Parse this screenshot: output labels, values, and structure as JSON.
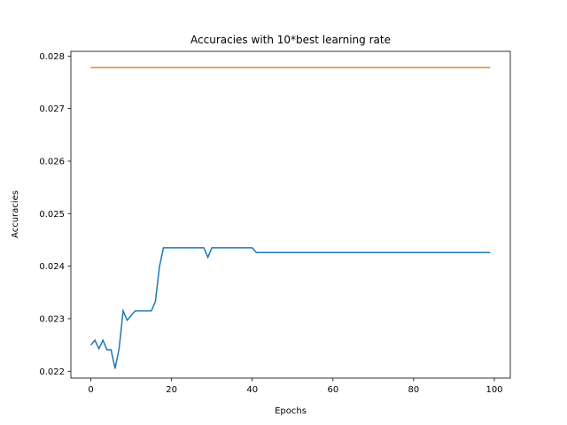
{
  "chart_data": {
    "type": "line",
    "title": "Accuracies with 10*best learning rate",
    "xlabel": "Epochs",
    "ylabel": "Accuracies",
    "xlim": [
      -4.95,
      103.95
    ],
    "ylim": [
      0.02187,
      0.02809
    ],
    "xticks": [
      0,
      20,
      40,
      60,
      80,
      100
    ],
    "yticks": [
      0.022,
      0.023,
      0.024,
      0.025,
      0.026,
      0.027,
      0.028
    ],
    "grid": false,
    "legend": "none",
    "series": [
      {
        "color": "#1f77b4",
        "points": [
          [
            0,
            0.0225
          ],
          [
            1,
            0.02259
          ],
          [
            2,
            0.02243
          ],
          [
            3,
            0.02259
          ],
          [
            4,
            0.02241
          ],
          [
            5,
            0.02241
          ],
          [
            6,
            0.02205
          ],
          [
            7,
            0.02243
          ],
          [
            8,
            0.02315
          ],
          [
            9,
            0.02297
          ],
          [
            10,
            0.02306
          ],
          [
            11,
            0.02315
          ],
          [
            12,
            0.02315
          ],
          [
            13,
            0.02315
          ],
          [
            14,
            0.02315
          ],
          [
            15,
            0.02315
          ],
          [
            16,
            0.02333
          ],
          [
            17,
            0.02399
          ],
          [
            18,
            0.02435
          ],
          [
            19,
            0.02435
          ],
          [
            20,
            0.02435
          ],
          [
            21,
            0.02435
          ],
          [
            22,
            0.02435
          ],
          [
            23,
            0.02435
          ],
          [
            24,
            0.02435
          ],
          [
            25,
            0.02435
          ],
          [
            26,
            0.02435
          ],
          [
            27,
            0.02435
          ],
          [
            28,
            0.02435
          ],
          [
            29,
            0.02417
          ],
          [
            30,
            0.02435
          ],
          [
            31,
            0.02435
          ],
          [
            32,
            0.02435
          ],
          [
            33,
            0.02435
          ],
          [
            34,
            0.02435
          ],
          [
            35,
            0.02435
          ],
          [
            36,
            0.02435
          ],
          [
            37,
            0.02435
          ],
          [
            38,
            0.02435
          ],
          [
            39,
            0.02435
          ],
          [
            40,
            0.02435
          ],
          [
            41,
            0.02426
          ],
          [
            42,
            0.02426
          ],
          [
            99,
            0.02426
          ]
        ]
      },
      {
        "color": "#ff7f0e",
        "points": [
          [
            0,
            0.02778
          ],
          [
            99,
            0.02778
          ]
        ]
      }
    ]
  }
}
